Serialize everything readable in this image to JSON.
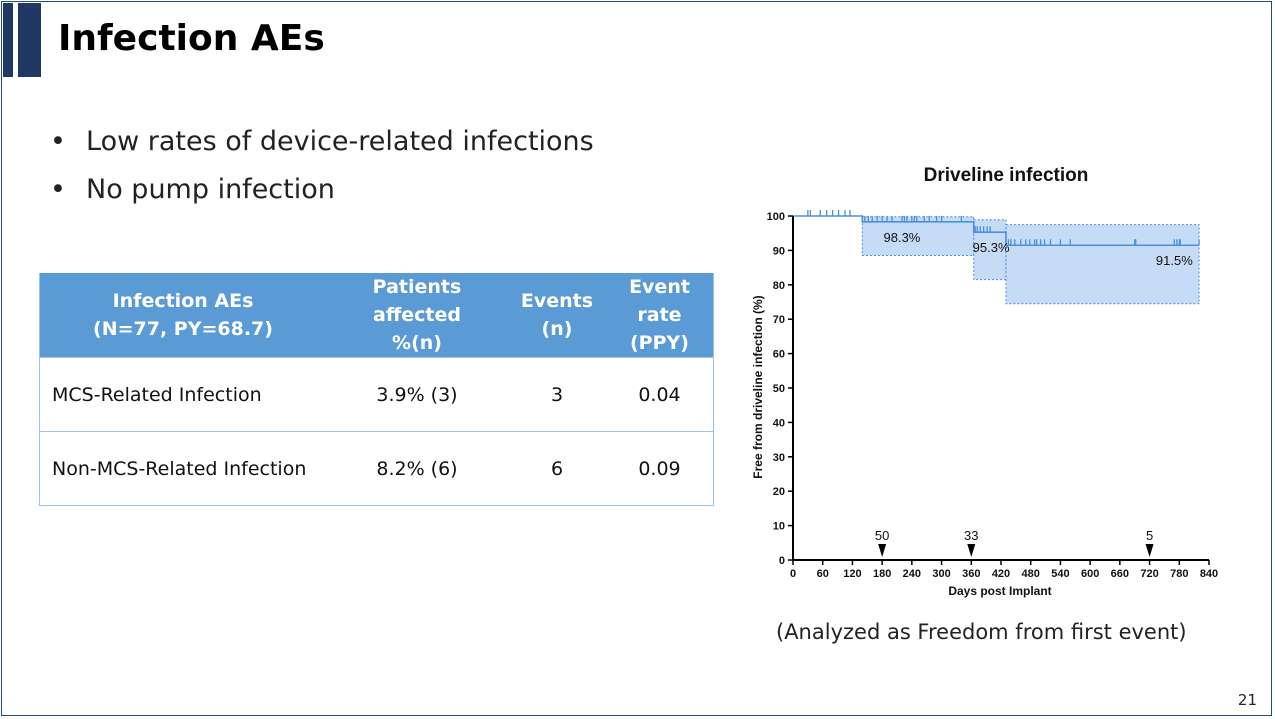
{
  "slide": {
    "title": "Infection AEs",
    "bullets": [
      "Low rates of device-related infections",
      "No pump infection"
    ],
    "page_number": "21",
    "note": "(Analyzed as Freedom from first event)",
    "accent_color": "#1f3864"
  },
  "table": {
    "headers": [
      [
        "Infection AEs",
        "(N=77, PY=68.7)"
      ],
      [
        "Patients affected",
        "%(n)"
      ],
      [
        "Events",
        "(n)"
      ],
      [
        "Event rate",
        "(PPY)"
      ]
    ],
    "rows": [
      [
        "MCS-Related Infection",
        "3.9% (3)",
        "3",
        "0.04"
      ],
      [
        "Non-MCS-Related Infection",
        "8.2% (6)",
        "6",
        "0.09"
      ]
    ],
    "header_color": "#5b9bd5"
  },
  "chart_data": {
    "type": "line",
    "title": "Driveline infection",
    "xlabel": "Days post Implant",
    "ylabel": "Free from driveline infection (%)",
    "xlim": [
      0,
      840
    ],
    "ylim": [
      0,
      100
    ],
    "x_ticks": [
      0,
      60,
      120,
      180,
      240,
      300,
      360,
      420,
      480,
      540,
      600,
      660,
      720,
      780,
      840
    ],
    "y_ticks": [
      0,
      10,
      20,
      30,
      40,
      50,
      60,
      70,
      80,
      90,
      100
    ],
    "grid": false,
    "series": [
      {
        "color": "#4a90e2",
        "ci_color": "#c6dbf5",
        "steps": [
          {
            "x0": 0,
            "x1": 140,
            "y": 100,
            "ci": [
              100,
              100
            ]
          },
          {
            "x0": 140,
            "x1": 365,
            "y": 98.3,
            "ci": [
              88.5,
              99.8
            ]
          },
          {
            "x0": 365,
            "x1": 430,
            "y": 95.3,
            "ci": [
              81.5,
              98.9
            ]
          },
          {
            "x0": 430,
            "x1": 820,
            "y": 91.5,
            "ci": [
              74.5,
              97.5
            ]
          }
        ],
        "censor_ticks": [
          30,
          35,
          55,
          68,
          80,
          92,
          105,
          115,
          145,
          152,
          160,
          170,
          180,
          190,
          200,
          220,
          225,
          230,
          240,
          245,
          250,
          265,
          275,
          290,
          300,
          340,
          368,
          372,
          378,
          385,
          392,
          398,
          435,
          440,
          448,
          460,
          470,
          478,
          488,
          492,
          500,
          508,
          520,
          540,
          560,
          690,
          692,
          770,
          775,
          780,
          782,
          820
        ]
      }
    ],
    "annotations": [
      {
        "x": 220,
        "y": 98.3,
        "text": "98.3%"
      },
      {
        "x": 400,
        "y": 95.3,
        "text": "95.3%"
      },
      {
        "x": 770,
        "y": 91.5,
        "text": "91.5%"
      }
    ],
    "at_risk": [
      {
        "x": 180,
        "label": "50"
      },
      {
        "x": 360,
        "label": "33"
      },
      {
        "x": 720,
        "label": "5"
      }
    ]
  }
}
